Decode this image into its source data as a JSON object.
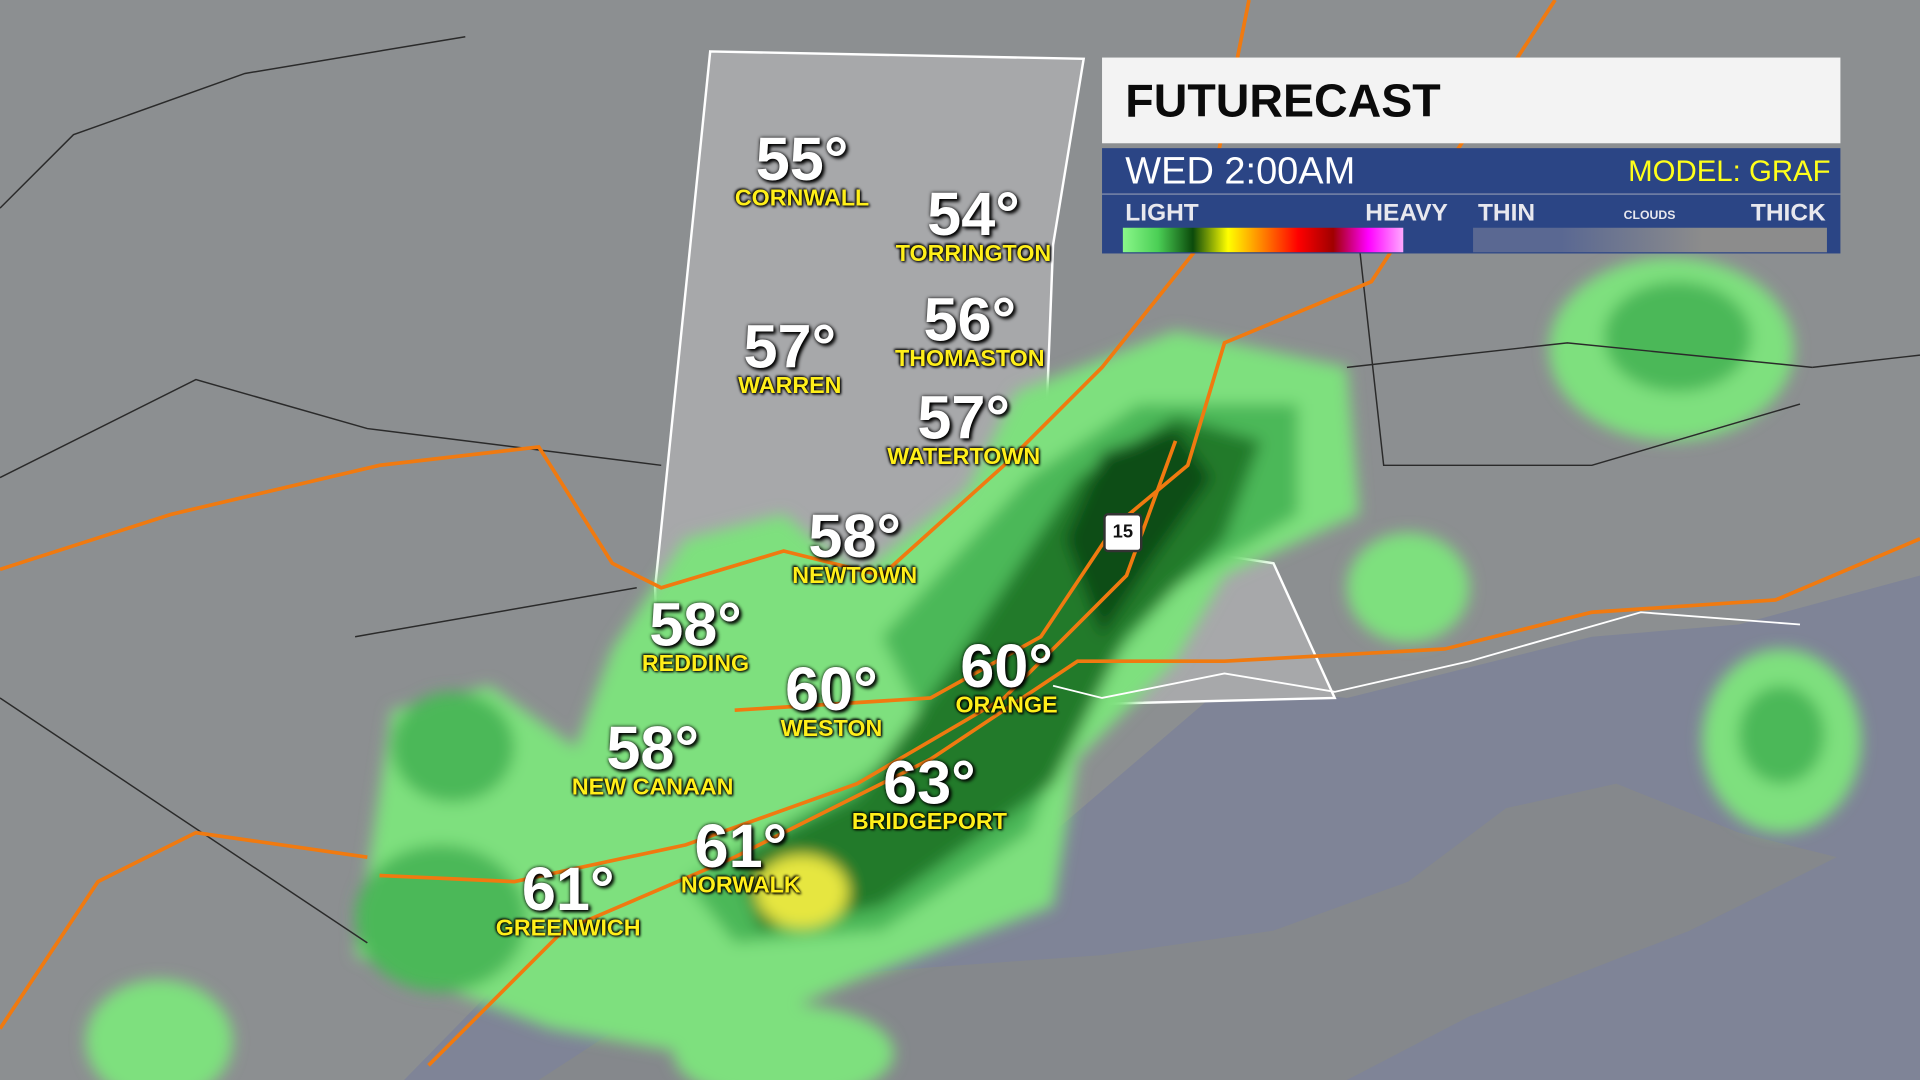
{
  "panel": {
    "title": "FUTURECAST",
    "time": "WED 2:00AM",
    "model": "MODEL: GRAF",
    "legend": {
      "precip_light": "LIGHT",
      "precip_heavy": "HEAVY",
      "clouds_thin": "THIN",
      "clouds_label": "CLOUDS",
      "clouds_thick": "THICK"
    }
  },
  "route_shield": "15",
  "cities": [
    {
      "name": "CORNWALL",
      "temp": "55°"
    },
    {
      "name": "TORRINGTON",
      "temp": "54°"
    },
    {
      "name": "WARREN",
      "temp": "57°"
    },
    {
      "name": "THOMASTON",
      "temp": "56°"
    },
    {
      "name": "WATERTOWN",
      "temp": "57°"
    },
    {
      "name": "NEWTOWN",
      "temp": "58°"
    },
    {
      "name": "REDDING",
      "temp": "58°"
    },
    {
      "name": "WESTON",
      "temp": "60°"
    },
    {
      "name": "ORANGE",
      "temp": "60°"
    },
    {
      "name": "NEW CANAAN",
      "temp": "58°"
    },
    {
      "name": "BRIDGEPORT",
      "temp": "63°"
    },
    {
      "name": "NORWALK",
      "temp": "61°"
    },
    {
      "name": "GREENWICH",
      "temp": "61°"
    }
  ],
  "colors": {
    "precip_scale": [
      "#8af78a",
      "#4bcf55",
      "#0b4a0b",
      "#ffff00",
      "#ff8000",
      "#ff0000",
      "#a00000",
      "#ff00ff",
      "#ffa8ff"
    ],
    "clouds_scale": [
      "#5a6892",
      "#8c8c8c"
    ],
    "roads": "#f07a10",
    "panel_blue": "#2b4585",
    "city_label": "#ffef1a"
  }
}
